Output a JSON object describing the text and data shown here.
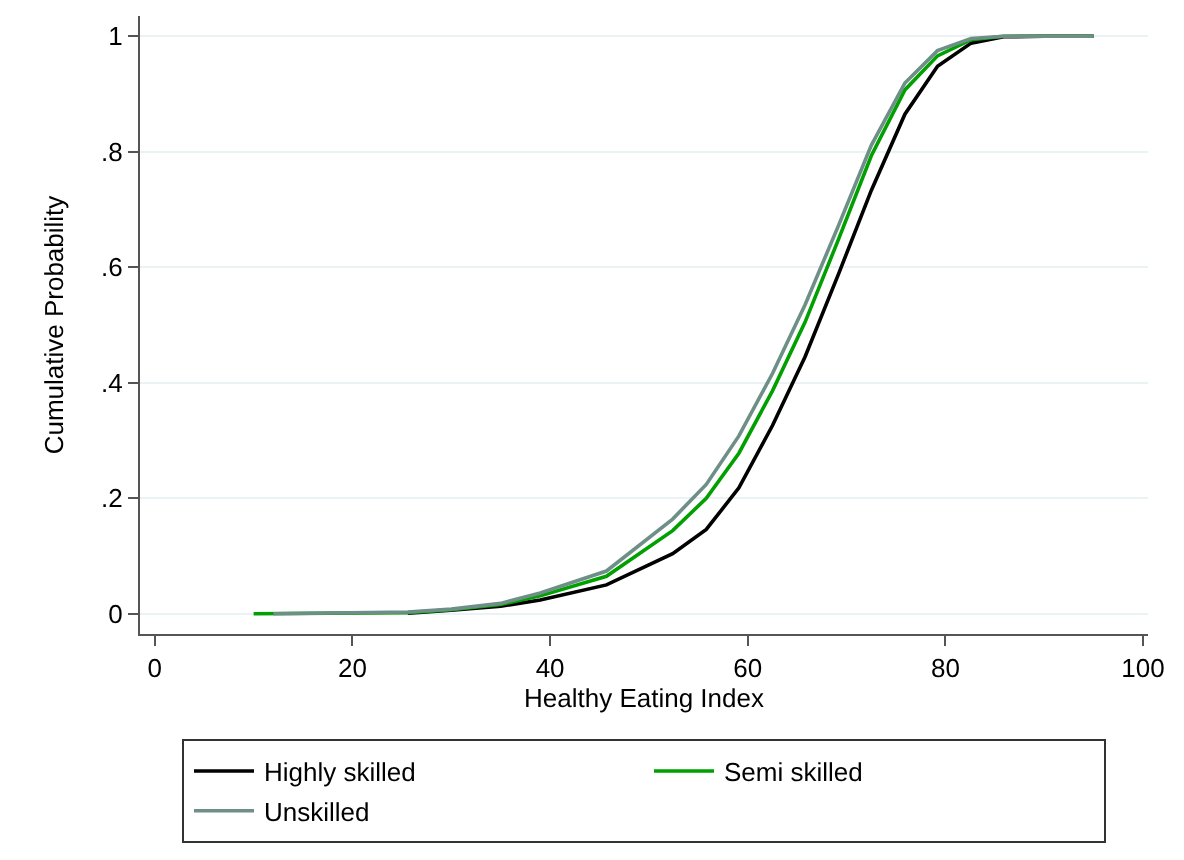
{
  "chart_data": {
    "type": "line",
    "xlabel": "Healthy Eating Index",
    "ylabel": "Cumulative Probability",
    "series": [
      {
        "name": "Highly skilled",
        "color": "#000000",
        "x": [
          25.6,
          30,
          35,
          39,
          45.7,
          52.4,
          55.8,
          59.1,
          62.5,
          65.8,
          69.2,
          72.5,
          75.9,
          79.2,
          82.6,
          85.9,
          90,
          95
        ],
        "values": [
          0.001,
          0.006,
          0.013,
          0.024,
          0.05,
          0.104,
          0.146,
          0.218,
          0.326,
          0.445,
          0.589,
          0.733,
          0.865,
          0.948,
          0.988,
          0.999,
          1,
          1
        ]
      },
      {
        "name": "Semi skilled",
        "color": "#00a000",
        "x": [
          10,
          25.6,
          30,
          35,
          39,
          45.7,
          52.4,
          55.8,
          59.1,
          62.5,
          65.8,
          69.2,
          72.5,
          75.9,
          79.2,
          82.6,
          85.9,
          90,
          95
        ],
        "values": [
          0,
          0.002,
          0.007,
          0.016,
          0.031,
          0.065,
          0.144,
          0.2,
          0.278,
          0.386,
          0.505,
          0.649,
          0.793,
          0.907,
          0.966,
          0.994,
          1,
          1,
          1
        ]
      },
      {
        "name": "Unskilled",
        "color": "#6e8f87",
        "x": [
          12,
          25.6,
          30,
          35,
          39,
          45.7,
          52.4,
          55.8,
          59.1,
          62.5,
          65.8,
          69.2,
          72.5,
          75.9,
          79.2,
          82.6,
          85.9,
          90,
          95
        ],
        "values": [
          0,
          0.003,
          0.008,
          0.018,
          0.036,
          0.074,
          0.164,
          0.224,
          0.308,
          0.416,
          0.535,
          0.673,
          0.811,
          0.919,
          0.975,
          0.996,
          1,
          1,
          1
        ]
      }
    ],
    "xlim": [
      -1.5,
      100.5
    ],
    "xticks": [
      0,
      20,
      40,
      60,
      80,
      100
    ],
    "ylim": [
      -0.035,
      1.035
    ],
    "yticks": [
      {
        "value": 0,
        "label": "0"
      },
      {
        "value": 0.2,
        "label": ".2"
      },
      {
        "value": 0.4,
        "label": ".4"
      },
      {
        "value": 0.6,
        "label": ".6"
      },
      {
        "value": 0.8,
        "label": ".8"
      },
      {
        "value": 1,
        "label": "1"
      }
    ],
    "grid": "y",
    "legend": "bottom",
    "marker": "none",
    "line_style": "solid"
  }
}
